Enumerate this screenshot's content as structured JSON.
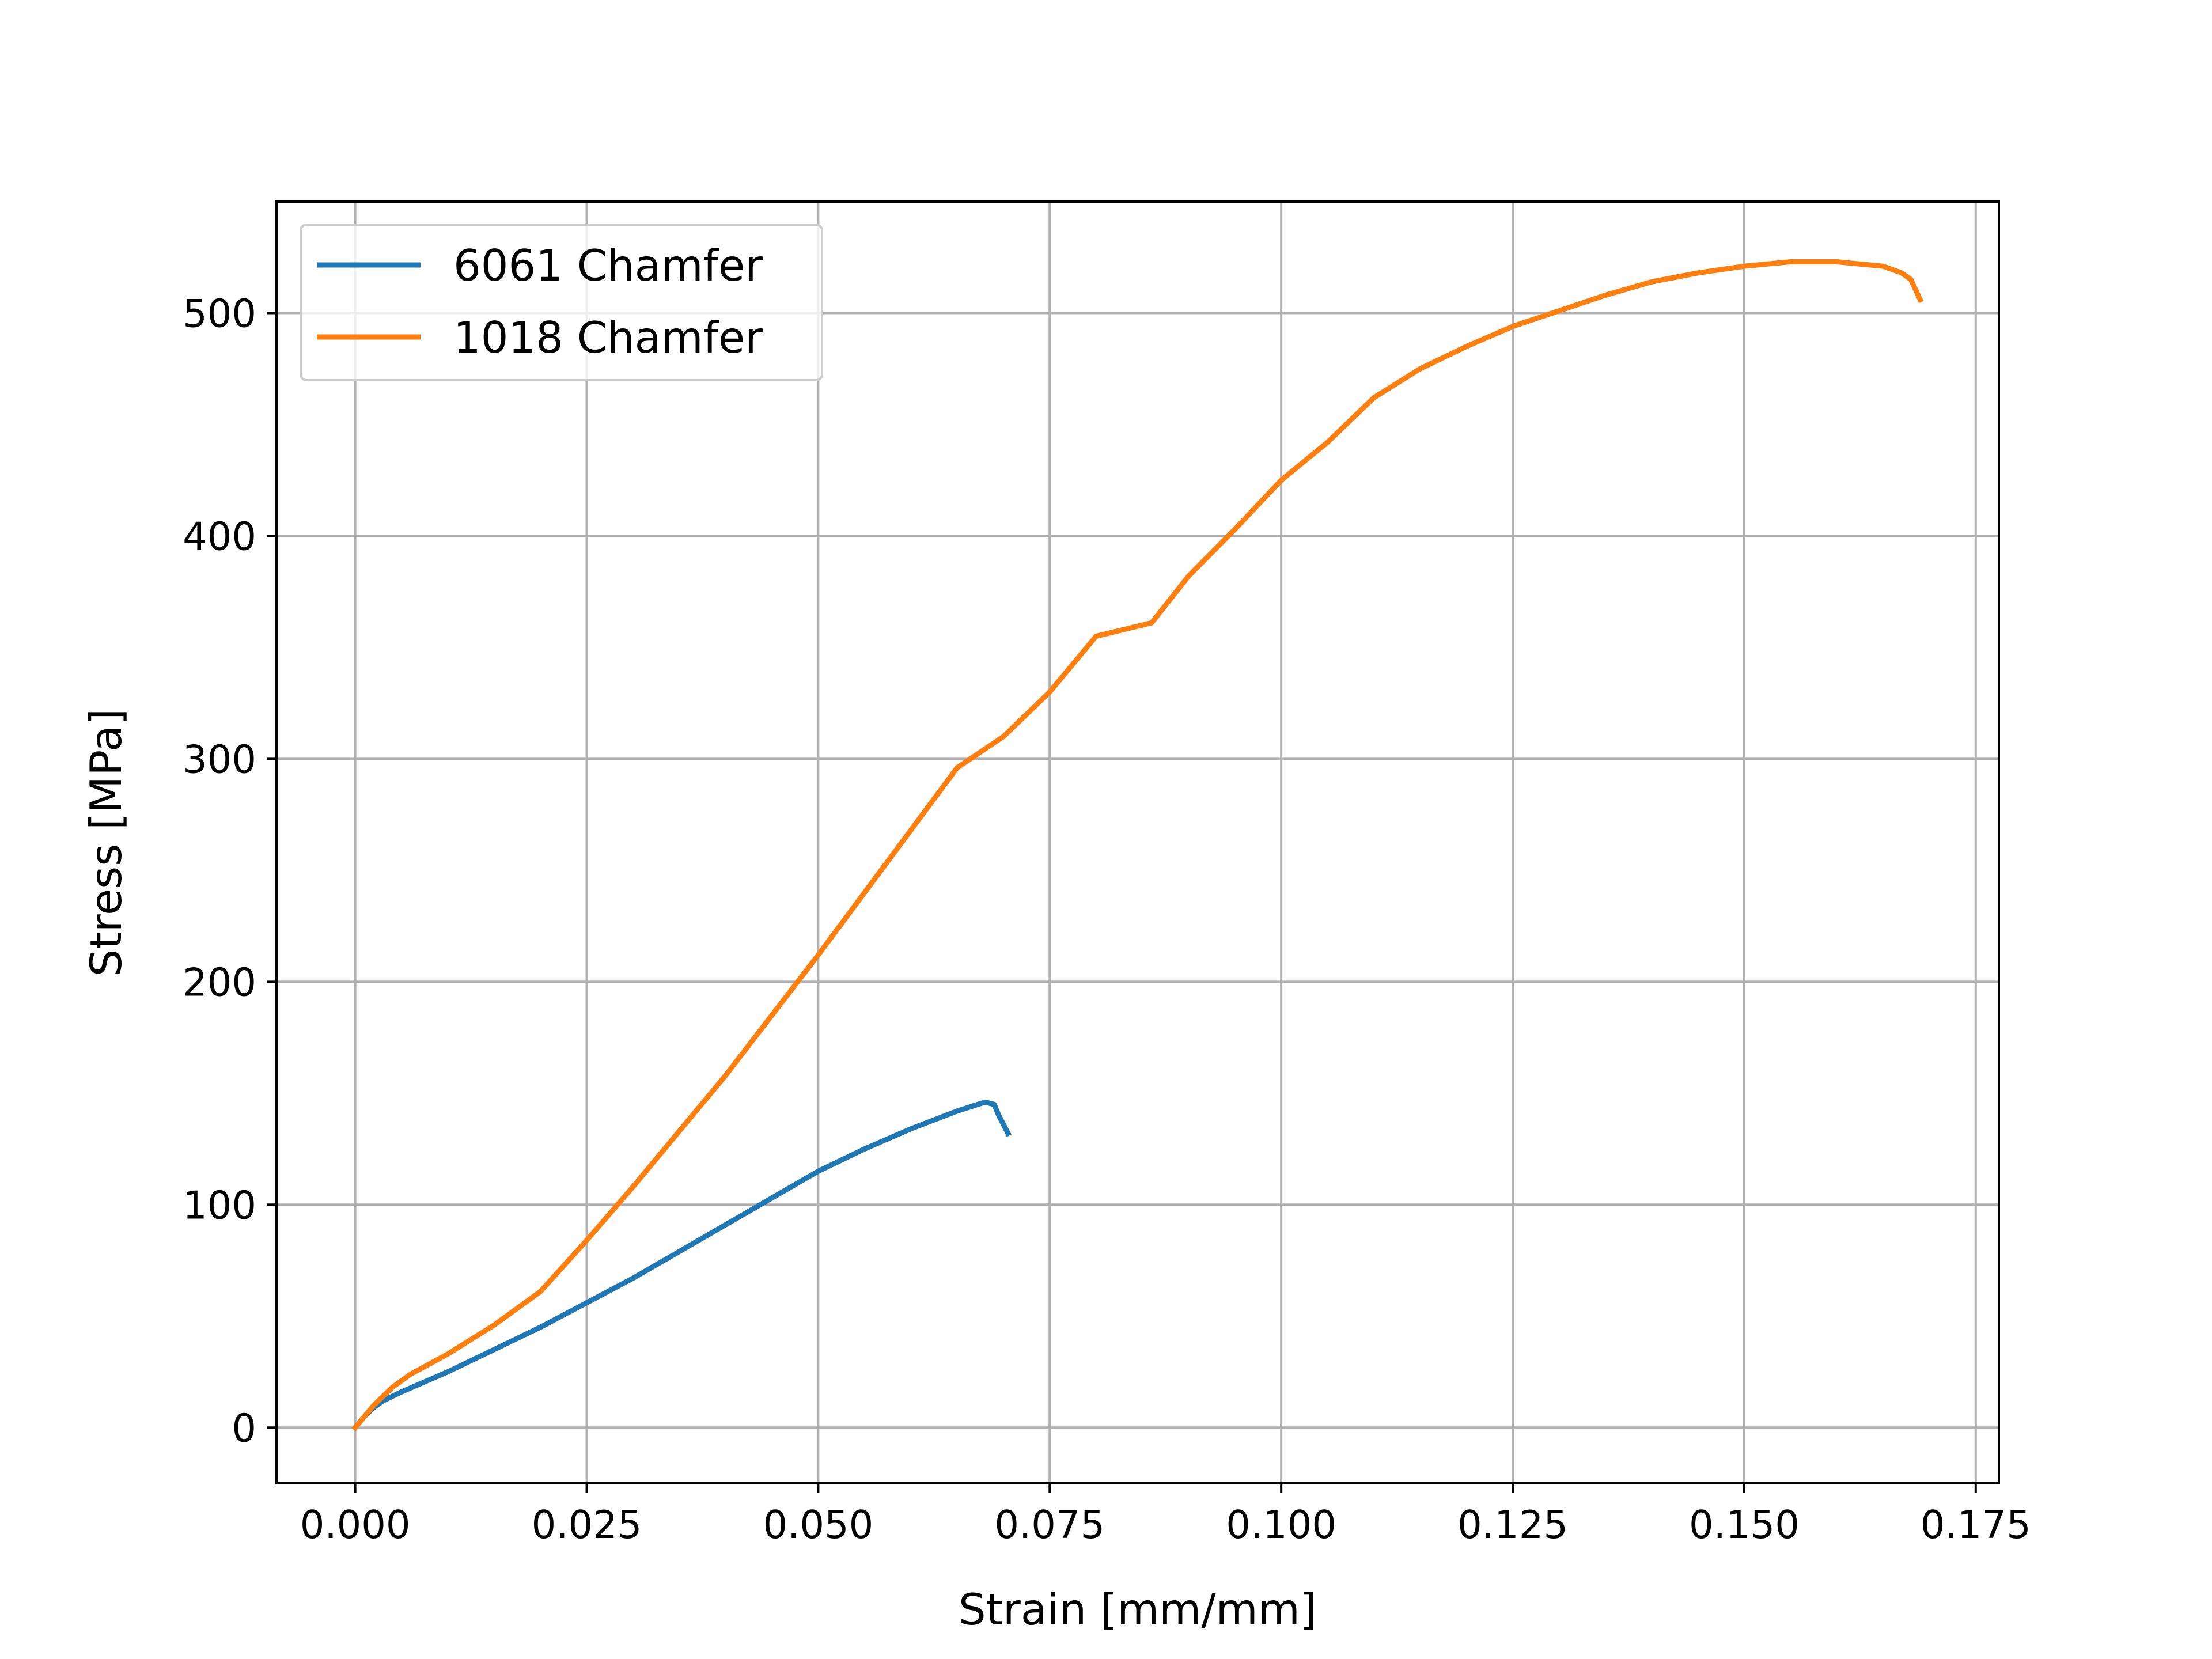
{
  "chart_data": {
    "type": "line",
    "xlabel": "Strain  [mm/mm]",
    "ylabel": "Stress  [MPa]",
    "xlim": [
      -0.0085,
      0.1775
    ],
    "ylim": [
      -25,
      550
    ],
    "xticks": [
      0.0,
      0.025,
      0.05,
      0.075,
      0.1,
      0.125,
      0.15,
      0.175
    ],
    "xtick_labels": [
      "0.000",
      "0.025",
      "0.050",
      "0.075",
      "0.100",
      "0.125",
      "0.150",
      "0.175"
    ],
    "yticks": [
      0,
      100,
      200,
      300,
      400,
      500
    ],
    "ytick_labels": [
      "0",
      "100",
      "200",
      "300",
      "400",
      "500"
    ],
    "grid": true,
    "legend_position": "top-left",
    "series": [
      {
        "name": "6061 Chamfer",
        "color": "#1f77b4",
        "points": [
          [
            0.0,
            0
          ],
          [
            0.001,
            5
          ],
          [
            0.002,
            9
          ],
          [
            0.003,
            12
          ],
          [
            0.005,
            16
          ],
          [
            0.01,
            25
          ],
          [
            0.015,
            35
          ],
          [
            0.02,
            45
          ],
          [
            0.025,
            56
          ],
          [
            0.03,
            67
          ],
          [
            0.035,
            79
          ],
          [
            0.04,
            91
          ],
          [
            0.045,
            103
          ],
          [
            0.05,
            115
          ],
          [
            0.055,
            125
          ],
          [
            0.06,
            134
          ],
          [
            0.065,
            142
          ],
          [
            0.068,
            146
          ],
          [
            0.069,
            145
          ],
          [
            0.0695,
            140
          ],
          [
            0.0705,
            132
          ]
        ]
      },
      {
        "name": "1018 Chamfer",
        "color": "#ff7f0e",
        "points": [
          [
            0.0,
            0
          ],
          [
            0.002,
            10
          ],
          [
            0.004,
            18
          ],
          [
            0.006,
            24
          ],
          [
            0.01,
            33
          ],
          [
            0.015,
            46
          ],
          [
            0.02,
            61
          ],
          [
            0.025,
            84
          ],
          [
            0.03,
            108
          ],
          [
            0.035,
            133
          ],
          [
            0.04,
            158
          ],
          [
            0.045,
            185
          ],
          [
            0.05,
            212
          ],
          [
            0.055,
            240
          ],
          [
            0.06,
            268
          ],
          [
            0.065,
            296
          ],
          [
            0.07,
            310
          ],
          [
            0.075,
            330
          ],
          [
            0.08,
            355
          ],
          [
            0.086,
            361
          ],
          [
            0.09,
            382
          ],
          [
            0.095,
            403
          ],
          [
            0.1,
            425
          ],
          [
            0.105,
            442
          ],
          [
            0.11,
            462
          ],
          [
            0.115,
            475
          ],
          [
            0.12,
            485
          ],
          [
            0.125,
            494
          ],
          [
            0.13,
            501
          ],
          [
            0.135,
            508
          ],
          [
            0.14,
            514
          ],
          [
            0.145,
            518
          ],
          [
            0.15,
            521
          ],
          [
            0.155,
            523
          ],
          [
            0.16,
            523
          ],
          [
            0.165,
            521
          ],
          [
            0.167,
            518
          ],
          [
            0.168,
            515
          ],
          [
            0.169,
            506
          ]
        ]
      }
    ]
  }
}
